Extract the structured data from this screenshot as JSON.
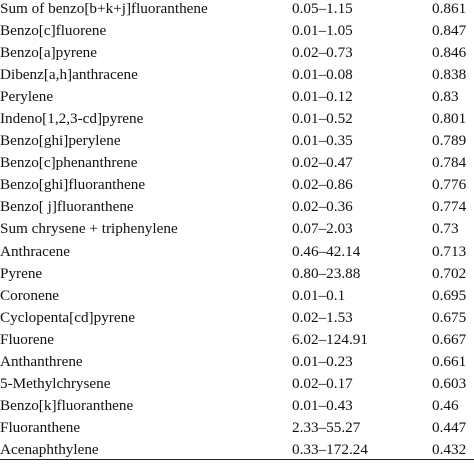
{
  "table": {
    "rows": [
      {
        "name": "Sum of benzo[b+k+j]fluoranthene",
        "range": "0.05–1.15",
        "value": "0.861"
      },
      {
        "name": "Benzo[c]fluorene",
        "range": "0.01–1.05",
        "value": "0.847"
      },
      {
        "name": "Benzo[a]pyrene",
        "range": "0.02–0.73",
        "value": "0.846"
      },
      {
        "name": "Dibenz[a,h]anthracene",
        "range": "0.01–0.08",
        "value": "0.838"
      },
      {
        "name": "Perylene",
        "range": "0.01–0.12",
        "value": "0.83"
      },
      {
        "name": "Indeno[1,2,3-cd]pyrene",
        "range": "0.01–0.52",
        "value": "0.801"
      },
      {
        "name": "Benzo[ghi]perylene",
        "range": "0.01–0.35",
        "value": "0.789"
      },
      {
        "name": "Benzo[c]phenanthrene",
        "range": "0.02–0.47",
        "value": "0.784"
      },
      {
        "name": "Benzo[ghi]fluoranthene",
        "range": "0.02–0.86",
        "value": "0.776"
      },
      {
        "name": "Benzo[ j]fluoranthene",
        "range": "0.02–0.36",
        "value": "0.774"
      },
      {
        "name": "Sum chrysene + triphenylene",
        "range": "0.07–2.03",
        "value": "0.73"
      },
      {
        "name": "Anthracene",
        "range": "0.46–42.14",
        "value": "0.713"
      },
      {
        "name": "Pyrene",
        "range": "0.80–23.88",
        "value": "0.702"
      },
      {
        "name": "Coronene",
        "range": "0.01–0.1",
        "value": "0.695"
      },
      {
        "name": "Cyclopenta[cd]pyrene",
        "range": "0.02–1.53",
        "value": "0.675"
      },
      {
        "name": "Fluorene",
        "range": "6.02–124.91",
        "value": "0.667"
      },
      {
        "name": "Anthanthrene",
        "range": "0.01–0.23",
        "value": "0.661"
      },
      {
        "name": "5-Methylchrysene",
        "range": "0.02–0.17",
        "value": "0.603"
      },
      {
        "name": "Benzo[k]fluoranthene",
        "range": "0.01–0.43",
        "value": "0.46"
      },
      {
        "name": "Fluoranthene",
        "range": "2.33–55.27",
        "value": "0.447"
      },
      {
        "name": "Acenaphthylene",
        "range": "0.33–172.24",
        "value": "0.432"
      }
    ]
  }
}
